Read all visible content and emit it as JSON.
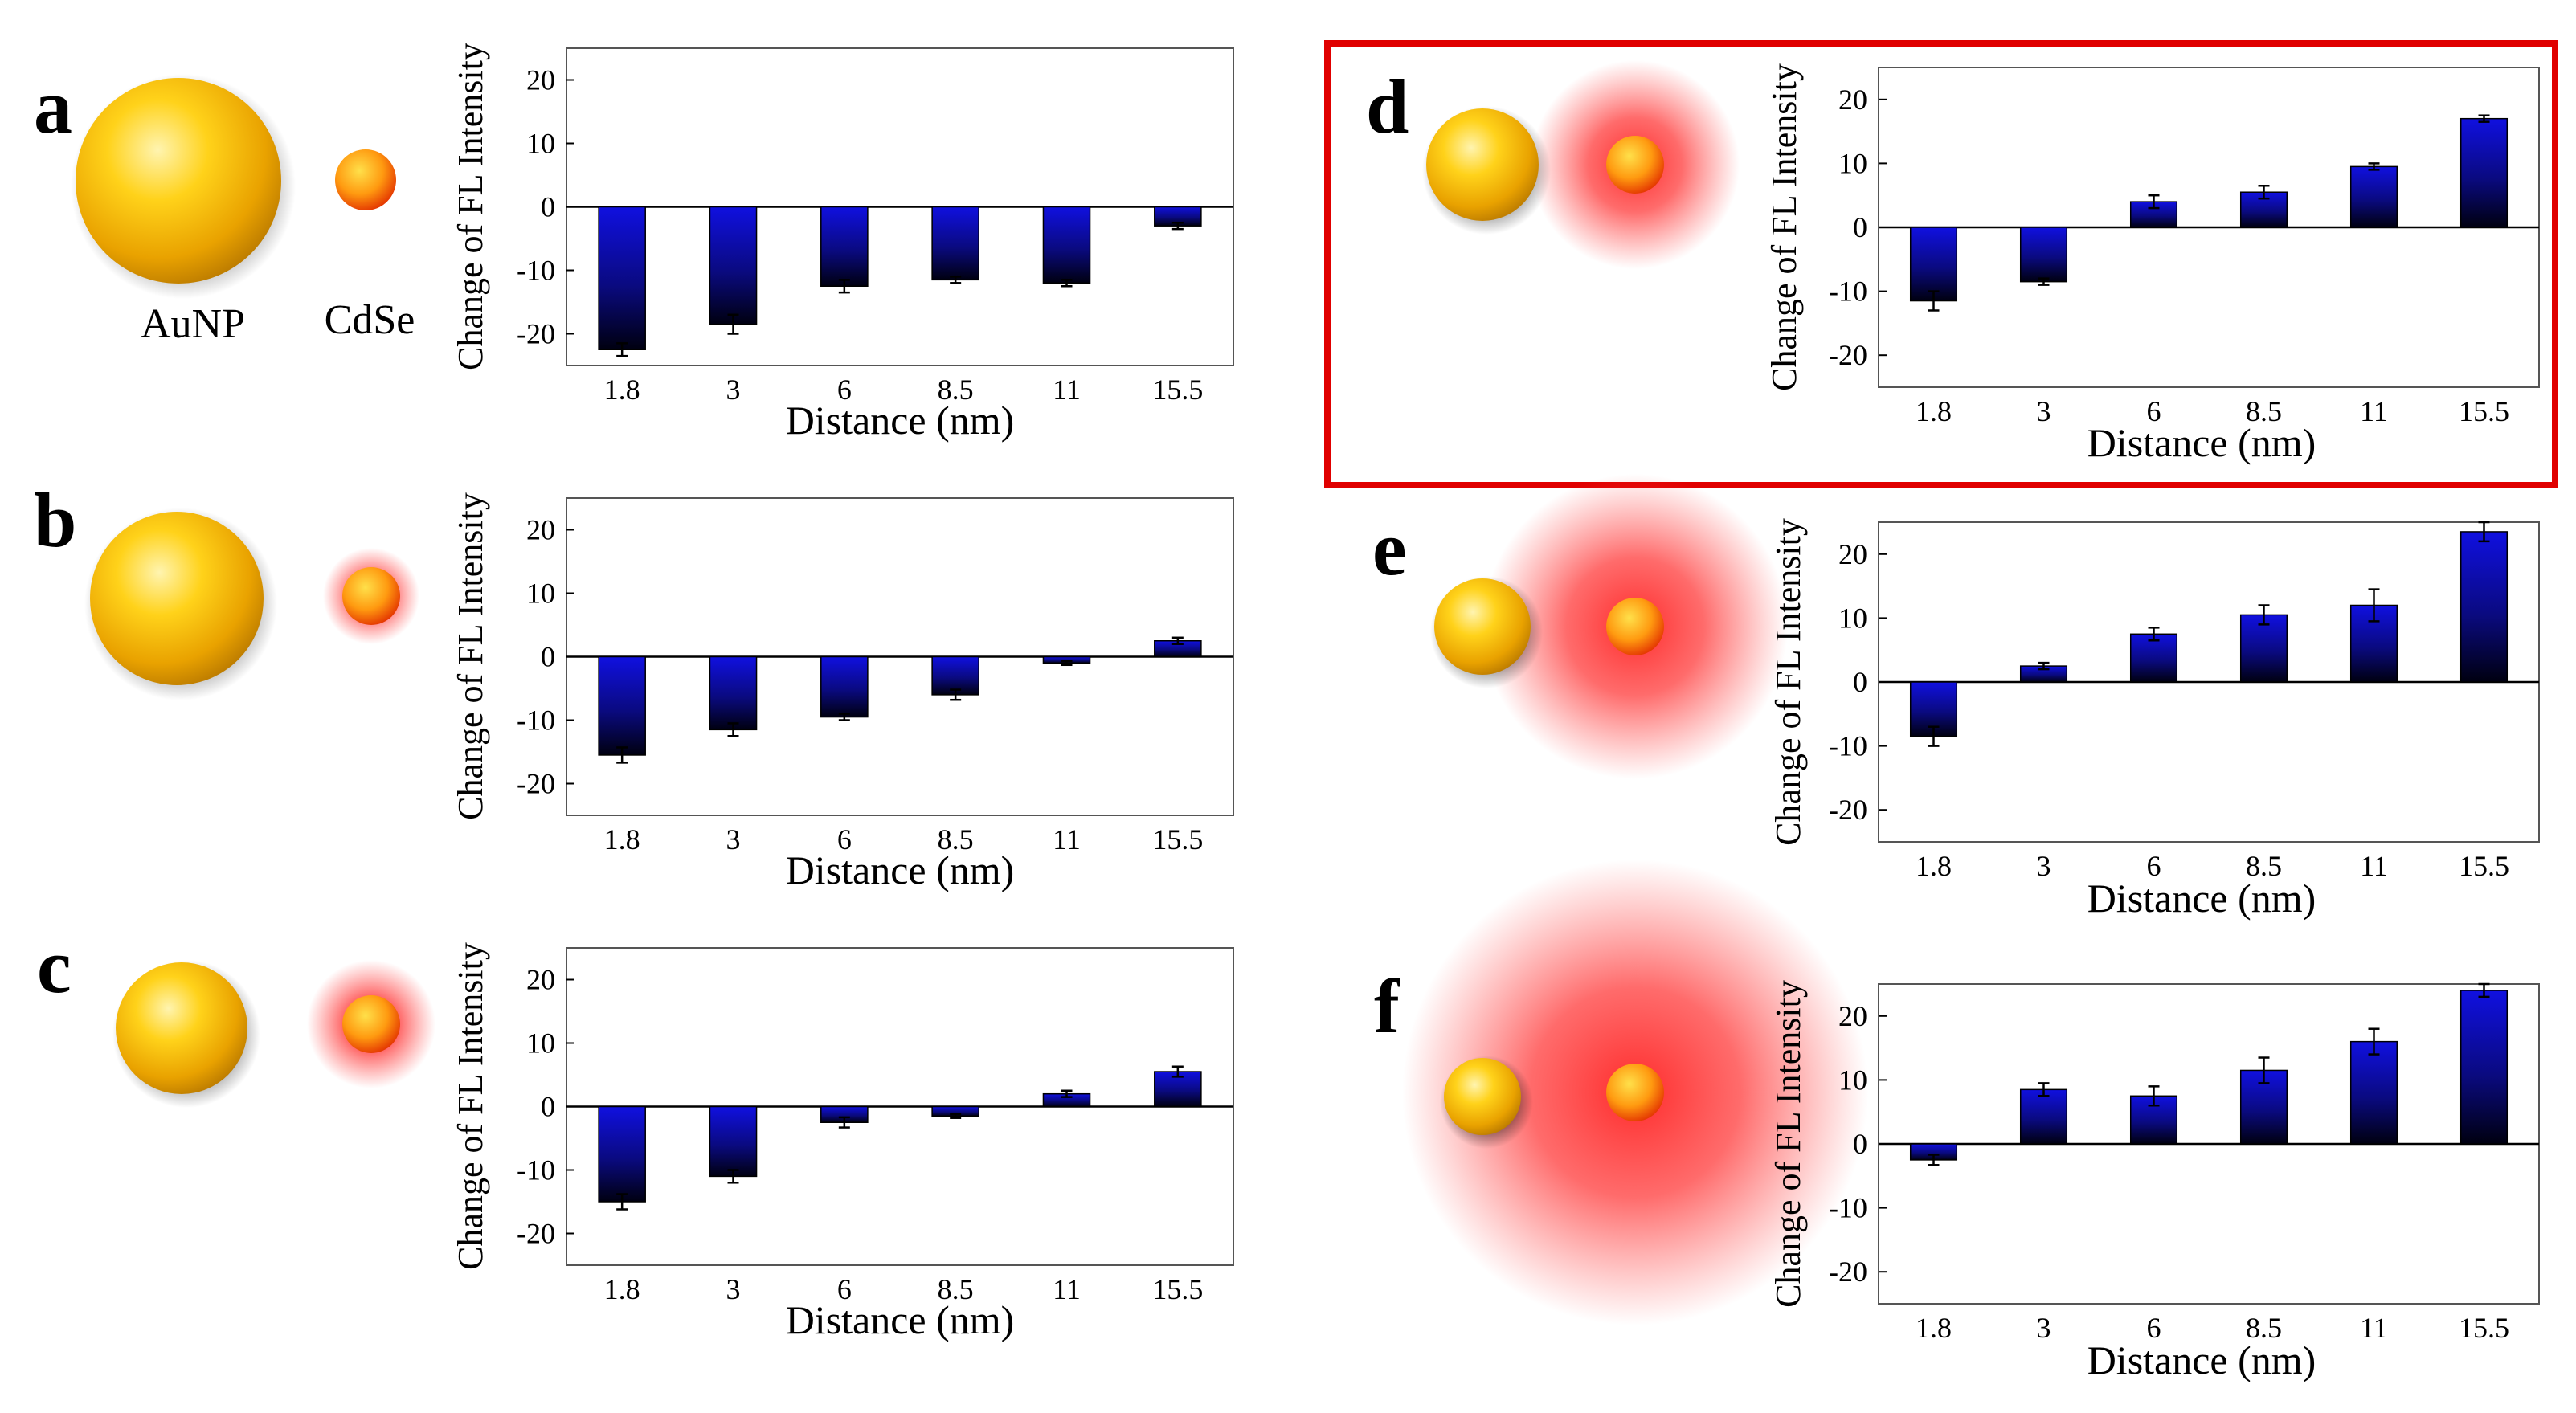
{
  "labels": {
    "aunp": "AuNP",
    "cdse": "CdSe"
  },
  "chart_data": [
    {
      "panel": "a",
      "type": "bar",
      "categories": [
        "1.8",
        "3",
        "6",
        "8.5",
        "11",
        "15.5"
      ],
      "values": [
        -22.5,
        -18.5,
        -12.5,
        -11.5,
        -12,
        -3
      ],
      "errors": [
        1.0,
        1.5,
        1.0,
        0.5,
        0.5,
        0.5
      ],
      "xlabel": "Distance (nm)",
      "ylabel": "Change of FL Intensity",
      "ylim": [
        -25,
        25
      ],
      "yticks": [
        20,
        10,
        0,
        -10,
        -20
      ],
      "highlight": false,
      "glow": 0
    },
    {
      "panel": "b",
      "type": "bar",
      "categories": [
        "1.8",
        "3",
        "6",
        "8.5",
        "11",
        "15.5"
      ],
      "values": [
        -15.5,
        -11.5,
        -9.5,
        -6,
        -1,
        2.5
      ],
      "errors": [
        1.2,
        1.0,
        0.5,
        0.8,
        0.3,
        0.5
      ],
      "xlabel": "Distance (nm)",
      "ylabel": "Change of FL Intensity",
      "ylim": [
        -25,
        25
      ],
      "yticks": [
        20,
        10,
        0,
        -10,
        -20
      ],
      "highlight": false,
      "glow": 1
    },
    {
      "panel": "c",
      "type": "bar",
      "categories": [
        "1.8",
        "3",
        "6",
        "8.5",
        "11",
        "15.5"
      ],
      "values": [
        -15,
        -11,
        -2.5,
        -1.5,
        2,
        5.5
      ],
      "errors": [
        1.2,
        1.0,
        0.8,
        0.3,
        0.5,
        0.8
      ],
      "xlabel": "Distance (nm)",
      "ylabel": "Change of FL Intensity",
      "ylim": [
        -25,
        25
      ],
      "yticks": [
        20,
        10,
        0,
        -10,
        -20
      ],
      "highlight": false,
      "glow": 2
    },
    {
      "panel": "d",
      "type": "bar",
      "categories": [
        "1.8",
        "3",
        "6",
        "8.5",
        "11",
        "15.5"
      ],
      "values": [
        -11.5,
        -8.5,
        4,
        5.5,
        9.5,
        17
      ],
      "errors": [
        1.5,
        0.5,
        1.0,
        1.0,
        0.5,
        0.5
      ],
      "xlabel": "Distance (nm)",
      "ylabel": "Change of FL Intensity",
      "ylim": [
        -25,
        25
      ],
      "yticks": [
        20,
        10,
        0,
        -10,
        -20
      ],
      "highlight": true,
      "glow": 3
    },
    {
      "panel": "e",
      "type": "bar",
      "categories": [
        "1.8",
        "3",
        "6",
        "8.5",
        "11",
        "15.5"
      ],
      "values": [
        -8.5,
        2.5,
        7.5,
        10.5,
        12,
        23.5
      ],
      "errors": [
        1.5,
        0.5,
        1.0,
        1.5,
        2.5,
        1.5
      ],
      "xlabel": "Distance (nm)",
      "ylabel": "Change of FL Intensity",
      "ylim": [
        -25,
        25
      ],
      "yticks": [
        20,
        10,
        0,
        -10,
        -20
      ],
      "highlight": false,
      "glow": 4
    },
    {
      "panel": "f",
      "type": "bar",
      "categories": [
        "1.8",
        "3",
        "6",
        "8.5",
        "11",
        "15.5"
      ],
      "values": [
        -2.5,
        8.5,
        7.5,
        11.5,
        16,
        24
      ],
      "errors": [
        0.8,
        1.0,
        1.5,
        2.0,
        2.0,
        1.0
      ],
      "xlabel": "Distance (nm)",
      "ylabel": "Change of FL Intensity",
      "ylim": [
        -25,
        25
      ],
      "yticks": [
        20,
        10,
        0,
        -10,
        -20
      ],
      "highlight": false,
      "glow": 5
    }
  ]
}
